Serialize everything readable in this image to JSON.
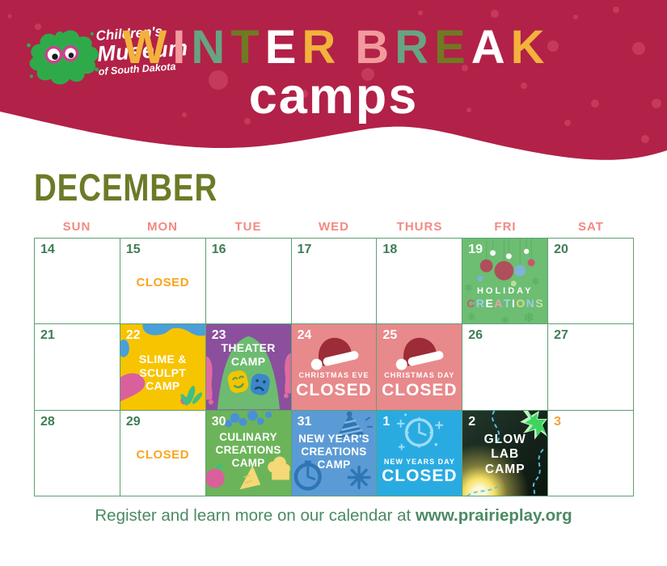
{
  "banner": {
    "logo": {
      "line1": "Children's",
      "line2": "Museum",
      "line3": "of South Dakota"
    },
    "title_word1": [
      {
        "ch": "W",
        "color": "#f2b23c"
      },
      {
        "ch": "I",
        "color": "#f29a9c"
      },
      {
        "ch": "N",
        "color": "#68a383"
      },
      {
        "ch": "T",
        "color": "#6f7a22"
      },
      {
        "ch": "E",
        "color": "#ffffff"
      },
      {
        "ch": "R",
        "color": "#f2b23c"
      }
    ],
    "title_word2": [
      {
        "ch": "B",
        "color": "#f29a9c"
      },
      {
        "ch": "R",
        "color": "#68a383"
      },
      {
        "ch": "E",
        "color": "#6f7a22"
      },
      {
        "ch": "A",
        "color": "#ffffff"
      },
      {
        "ch": "K",
        "color": "#f2b23c"
      }
    ],
    "subtitle": "camps"
  },
  "calendar": {
    "month": "DECEMBER",
    "day_headers": [
      "SUN",
      "MON",
      "TUE",
      "WED",
      "THURS",
      "FRI",
      "SAT"
    ],
    "days": {
      "d14": {
        "num": "14"
      },
      "d15": {
        "num": "15",
        "label": "CLOSED"
      },
      "d16": {
        "num": "16"
      },
      "d17": {
        "num": "17"
      },
      "d18": {
        "num": "18"
      },
      "d19": {
        "num": "19",
        "line1": "HOLIDAY",
        "letters": [
          {
            "ch": "C",
            "color": "#c75b6e"
          },
          {
            "ch": "R",
            "color": "#9ccaec"
          },
          {
            "ch": "E",
            "color": "#ffffff"
          },
          {
            "ch": "A",
            "color": "#eca0ad"
          },
          {
            "ch": "T",
            "color": "#a8d4e8"
          },
          {
            "ch": "I",
            "color": "#f2f2f2"
          },
          {
            "ch": "O",
            "color": "#d9d98a"
          },
          {
            "ch": "N",
            "color": "#9ccaec"
          },
          {
            "ch": "S",
            "color": "#bfdfa6"
          }
        ]
      },
      "d20": {
        "num": "20"
      },
      "d21": {
        "num": "21"
      },
      "d22": {
        "num": "22",
        "lines": [
          "SLIME &",
          "SCULPT",
          "CAMP"
        ]
      },
      "d23": {
        "num": "23",
        "lines": [
          "THEATER",
          "CAMP"
        ]
      },
      "d24": {
        "num": "24",
        "sub": "CHRISTMAS EVE",
        "label": "CLOSED"
      },
      "d25": {
        "num": "25",
        "sub": "CHRISTMAS DAY",
        "label": "CLOSED"
      },
      "d26": {
        "num": "26"
      },
      "d27": {
        "num": "27"
      },
      "d28": {
        "num": "28"
      },
      "d29": {
        "num": "29",
        "label": "CLOSED"
      },
      "d30": {
        "num": "30",
        "lines": [
          "CULINARY",
          "CREATIONS",
          "CAMP"
        ]
      },
      "d31": {
        "num": "31",
        "lines": [
          "NEW YEAR'S",
          "CREATIONS",
          "CAMP"
        ]
      },
      "j1": {
        "num": "1",
        "sub": "NEW YEARS DAY",
        "label": "CLOSED"
      },
      "j2": {
        "num": "2",
        "lines": [
          "GLOW",
          "LAB",
          "CAMP"
        ]
      },
      "j3": {
        "num": "3"
      }
    }
  },
  "footer": {
    "text": "Register and learn more on our calendar at",
    "link": "www.prairieplay.org"
  },
  "colors": {
    "banner_red": "#b22148",
    "confetti_dot": "#c43a5c",
    "title_yellow": "#f2b23c",
    "title_pink": "#f29a9c",
    "title_sage": "#68a383",
    "title_olive": "#6f7a22",
    "month_olive": "#6e7a28",
    "weekday_salmon": "#f28a80",
    "grid_green": "#5f9f74",
    "date_green": "#3e7d54",
    "closed_orange": "#f9a51f",
    "next_month_orange": "#f5a03c",
    "footer_green": "#4c8a64",
    "tile_holiday_green": "#6dbd72",
    "tile_slime_yellow": "#f7c400",
    "tile_theater_purple": "#8b4f9e",
    "tile_christmas_pink": "#e8898b",
    "tile_culinary_green": "#6cb45a",
    "tile_newyear_blue": "#5b9bd5",
    "tile_newyearsday_blue": "#29abe2",
    "tile_glow_dark": "#13211a"
  }
}
